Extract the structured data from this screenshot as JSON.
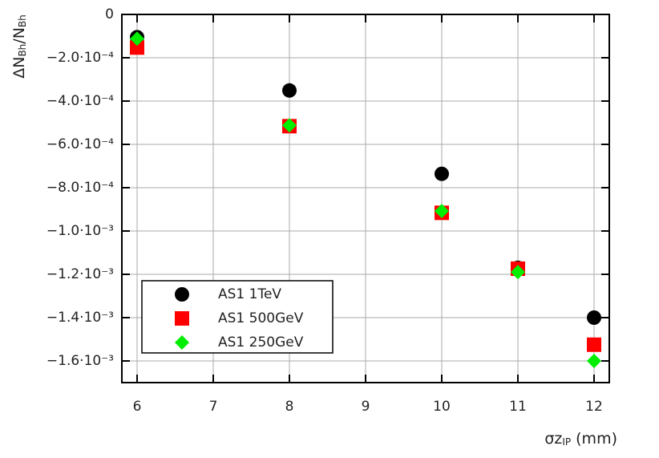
{
  "chart_data": {
    "type": "scatter",
    "xlabel": [
      "σz",
      "IP",
      " (mm)"
    ],
    "ylabel": [
      "ΔN",
      "Bh",
      "/N",
      "Bh"
    ],
    "xlim": [
      5.8,
      12.2
    ],
    "xticks": [
      6,
      7,
      8,
      9,
      10,
      11,
      12
    ],
    "ylim": [
      -0.0017,
      0
    ],
    "yticks": [
      0,
      {
        "value": -0.0002,
        "label": "−2.0·10⁻⁴"
      },
      {
        "value": -0.0004,
        "label": "−4.0·10⁻⁴"
      },
      {
        "value": -0.0006,
        "label": "−6.0·10⁻⁴"
      },
      {
        "value": -0.0008,
        "label": "−8.0·10⁻⁴"
      },
      {
        "value": -0.001,
        "label": "−1.0·10⁻³"
      },
      {
        "value": -0.0012,
        "label": "−1.2·10⁻³"
      },
      {
        "value": -0.0014,
        "label": "−1.4·10⁻³"
      },
      {
        "value": -0.0016,
        "label": "−1.6·10⁻³"
      }
    ],
    "grid": true,
    "legend": "lower left",
    "x": [
      6,
      8,
      10,
      11,
      12
    ],
    "series": [
      {
        "name": "AS1 1TeV",
        "color": "#000000",
        "marker": "circle",
        "values": [
          -0.000105,
          -0.000351,
          -0.000736,
          -0.00117,
          -0.0014
        ]
      },
      {
        "name": "AS1 500GeV",
        "color": "#ff0000",
        "marker": "square",
        "values": [
          -0.000153,
          -0.000516,
          -0.000916,
          -0.001174,
          -0.001525
        ]
      },
      {
        "name": "AS1 250GeV",
        "color": "#00ee00",
        "marker": "diamond",
        "values": [
          -0.000112,
          -0.000512,
          -0.000908,
          -0.00119,
          -0.0016
        ]
      }
    ]
  }
}
